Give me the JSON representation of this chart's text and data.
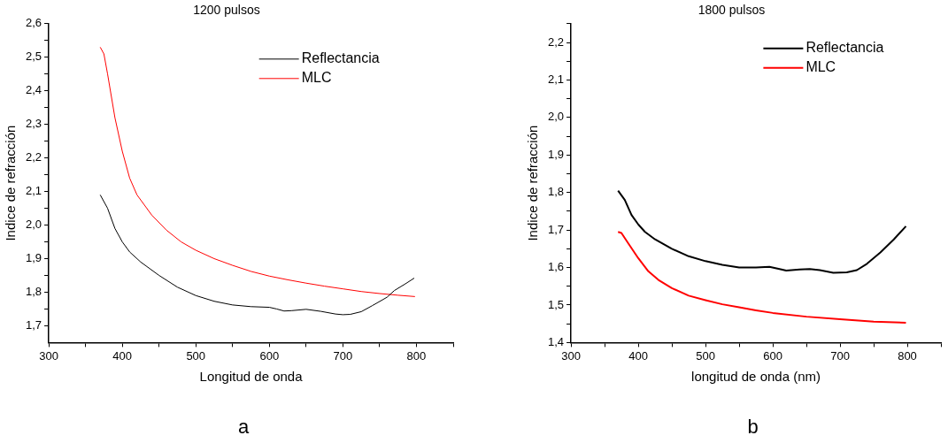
{
  "chart_data": [
    {
      "type": "line",
      "title": "1200 pulsos",
      "xlabel": "Longitud de onda",
      "ylabel": "Indice de refracción",
      "annotations": [
        "a"
      ],
      "legend": "top",
      "marker": "none",
      "line_style": "solid",
      "grid": false,
      "xlim": [
        300,
        850
      ],
      "xticks": [
        300,
        {
          "value": 350,
          "label": null
        },
        400,
        {
          "value": 450,
          "label": null
        },
        500,
        {
          "value": 550,
          "label": null
        },
        600,
        {
          "value": 650,
          "label": null
        },
        700,
        {
          "value": 750,
          "label": null
        },
        800,
        {
          "value": 850,
          "label": null
        }
      ],
      "ylim": [
        1.65,
        2.6
      ],
      "yticks": [
        {
          "value": 1.7,
          "label": "1,7"
        },
        {
          "value": 1.75,
          "label": null
        },
        {
          "value": 1.8,
          "label": "1,8"
        },
        {
          "value": 1.85,
          "label": null
        },
        {
          "value": 1.9,
          "label": "1,9"
        },
        {
          "value": 1.95,
          "label": null
        },
        {
          "value": 2.0,
          "label": "2,0"
        },
        {
          "value": 2.05,
          "label": null
        },
        {
          "value": 2.1,
          "label": "2,1"
        },
        {
          "value": 2.15,
          "label": null
        },
        {
          "value": 2.2,
          "label": "2,2"
        },
        {
          "value": 2.25,
          "label": null
        },
        {
          "value": 2.3,
          "label": "2,3"
        },
        {
          "value": 2.35,
          "label": null
        },
        {
          "value": 2.4,
          "label": "2,4"
        },
        {
          "value": 2.45,
          "label": null
        },
        {
          "value": 2.5,
          "label": "2,5"
        },
        {
          "value": 2.55,
          "label": null
        },
        {
          "value": 2.6,
          "label": "2,6"
        }
      ],
      "series": [
        {
          "name": "Reflectancia",
          "color": "#000000",
          "x": [
            370,
            380,
            390,
            400,
            410,
            425,
            450,
            475,
            500,
            525,
            550,
            575,
            600,
            610,
            620,
            630,
            650,
            670,
            690,
            700,
            710,
            725,
            740,
            760,
            770,
            785,
            797
          ],
          "values": [
            2.09,
            2.05,
            1.99,
            1.95,
            1.92,
            1.89,
            1.85,
            1.815,
            1.79,
            1.773,
            1.762,
            1.757,
            1.755,
            1.75,
            1.744,
            1.745,
            1.749,
            1.743,
            1.735,
            1.733,
            1.734,
            1.742,
            1.76,
            1.785,
            1.805,
            1.825,
            1.842
          ]
        },
        {
          "name": "MLC",
          "color": "#ff0000",
          "x": [
            370,
            375,
            380,
            390,
            400,
            410,
            420,
            440,
            460,
            480,
            500,
            525,
            550,
            575,
            600,
            625,
            650,
            675,
            700,
            725,
            750,
            775,
            798
          ],
          "values": [
            2.53,
            2.51,
            2.45,
            2.32,
            2.22,
            2.14,
            2.09,
            2.03,
            1.985,
            1.95,
            1.925,
            1.9,
            1.88,
            1.862,
            1.848,
            1.837,
            1.827,
            1.818,
            1.81,
            1.802,
            1.796,
            1.791,
            1.787
          ]
        }
      ]
    },
    {
      "type": "line",
      "title": "1800 pulsos",
      "xlabel": "longitud de onda (nm)",
      "ylabel": "Indice de refracción",
      "annotations": [
        "b"
      ],
      "legend": "top",
      "marker": "none",
      "line_style": "solid",
      "grid": false,
      "xlim": [
        300,
        850
      ],
      "xticks": [
        300,
        {
          "value": 350,
          "label": null
        },
        400,
        {
          "value": 450,
          "label": null
        },
        500,
        {
          "value": 550,
          "label": null
        },
        600,
        {
          "value": 650,
          "label": null
        },
        700,
        {
          "value": 750,
          "label": null
        },
        800,
        {
          "value": 850,
          "label": null
        }
      ],
      "ylim": [
        1.4,
        2.25
      ],
      "yticks": [
        {
          "value": 1.4,
          "label": "1,4"
        },
        {
          "value": 1.45,
          "label": null
        },
        {
          "value": 1.5,
          "label": "1,5"
        },
        {
          "value": 1.55,
          "label": null
        },
        {
          "value": 1.6,
          "label": "1,6"
        },
        {
          "value": 1.65,
          "label": null
        },
        {
          "value": 1.7,
          "label": "1,7"
        },
        {
          "value": 1.75,
          "label": null
        },
        {
          "value": 1.8,
          "label": "1,8"
        },
        {
          "value": 1.85,
          "label": null
        },
        {
          "value": 1.9,
          "label": "1,9"
        },
        {
          "value": 1.95,
          "label": null
        },
        {
          "value": 2.0,
          "label": "2,0"
        },
        {
          "value": 2.05,
          "label": null
        },
        {
          "value": 2.1,
          "label": "2,1"
        },
        {
          "value": 2.15,
          "label": null
        },
        {
          "value": 2.2,
          "label": "2,2"
        },
        {
          "value": 2.25,
          "label": null
        }
      ],
      "series": [
        {
          "name": "Reflectancia",
          "color": "#000000",
          "x": [
            370,
            380,
            390,
            400,
            410,
            425,
            450,
            475,
            500,
            525,
            550,
            575,
            595,
            610,
            620,
            640,
            655,
            670,
            690,
            710,
            725,
            740,
            760,
            780,
            798
          ],
          "values": [
            1.805,
            1.78,
            1.74,
            1.715,
            1.695,
            1.675,
            1.65,
            1.63,
            1.617,
            1.607,
            1.6,
            1.6,
            1.602,
            1.596,
            1.592,
            1.595,
            1.596,
            1.593,
            1.586,
            1.587,
            1.593,
            1.61,
            1.64,
            1.675,
            1.71
          ]
        },
        {
          "name": "MLC",
          "color": "#ff0000",
          "x": [
            370,
            375,
            385,
            400,
            415,
            430,
            450,
            475,
            500,
            525,
            550,
            575,
            600,
            650,
            700,
            750,
            798
          ],
          "values": [
            1.695,
            1.692,
            1.665,
            1.625,
            1.59,
            1.567,
            1.545,
            1.525,
            1.513,
            1.502,
            1.494,
            1.486,
            1.479,
            1.469,
            1.462,
            1.456,
            1.453
          ]
        }
      ]
    }
  ]
}
